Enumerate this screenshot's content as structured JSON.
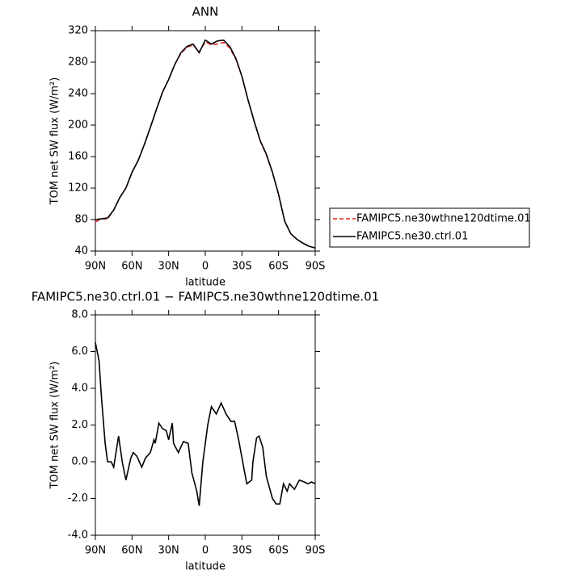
{
  "chart_data": [
    {
      "type": "line",
      "title": "ANN",
      "y_label": "TOM net SW flux (W/m²)",
      "x_label": "latitude",
      "x": [
        90,
        85,
        80,
        75,
        70,
        65,
        60,
        55,
        50,
        45,
        40,
        35,
        30,
        25,
        20,
        15,
        10,
        5,
        0,
        -5,
        -10,
        -15,
        -20,
        -25,
        -30,
        -35,
        -40,
        -45,
        -50,
        -55,
        -60,
        -65,
        -70,
        -75,
        -80,
        -85,
        -90
      ],
      "series": [
        {
          "name": "FAMIPC5.ne30wthne120dtime.01",
          "color": "#e8201c",
          "dash": "dashed",
          "values": [
            77,
            81,
            81,
            92,
            108,
            120,
            140,
            155,
            175,
            197,
            220,
            242,
            258,
            277,
            291,
            299,
            302,
            293,
            306,
            302,
            303,
            305,
            298,
            284,
            262,
            232,
            205,
            180,
            162,
            140,
            112,
            78,
            62,
            55,
            50,
            46,
            44
          ]
        },
        {
          "name": "FAMIPC5.ne30.ctrl.01",
          "color": "#000000",
          "dash": "solid",
          "values": [
            80,
            81,
            82,
            92,
            108,
            120,
            140,
            155,
            175,
            197,
            220,
            242,
            258,
            277,
            292,
            300,
            303,
            292,
            308,
            303,
            307,
            308,
            300,
            285,
            262,
            232,
            205,
            180,
            163,
            140,
            112,
            78,
            62,
            55,
            50,
            46,
            44
          ]
        }
      ],
      "xlim": [
        90,
        -90
      ],
      "xticks": [
        {
          "value": 90,
          "label": "90N"
        },
        {
          "value": 60,
          "label": "60N"
        },
        {
          "value": 30,
          "label": "30N"
        },
        0,
        {
          "value": -30,
          "label": "30S"
        },
        {
          "value": -60,
          "label": "60S"
        },
        {
          "value": -90,
          "label": "90S"
        }
      ],
      "ylim": [
        40,
        320
      ],
      "yticks": [
        40,
        80,
        120,
        160,
        200,
        240,
        280,
        320
      ],
      "legend": "outside-right"
    },
    {
      "type": "line",
      "title": "FAMIPC5.ne30.ctrl.01 − FAMIPC5.ne30wthne120dtime.01",
      "y_label": "TOM net SW flux (W/m²)",
      "x_label": "latitude",
      "x": [
        90,
        87,
        85,
        82,
        80,
        77,
        75,
        71,
        68,
        65,
        61,
        59,
        56,
        52,
        49,
        45,
        42,
        41,
        38,
        35,
        32,
        30,
        27,
        26,
        22,
        18,
        14,
        11,
        7,
        5,
        2,
        -2,
        -5,
        -9,
        -13,
        -17,
        -21,
        -24,
        -27,
        -32,
        -34,
        -38,
        -39,
        -42,
        -44,
        -47,
        -50,
        -55,
        -58,
        -61,
        -64,
        -67,
        -69,
        -73,
        -77,
        -81,
        -84,
        -87,
        -90
      ],
      "series": [
        {
          "color": "#000000",
          "dash": "solid",
          "values": [
            6.5,
            5.5,
            3.5,
            1,
            0,
            0,
            -0.3,
            1.4,
            0,
            -1,
            0.2,
            0.5,
            0.3,
            -0.3,
            0.2,
            0.5,
            1.2,
            1.0,
            2.1,
            1.8,
            1.7,
            1.2,
            2.1,
            1.0,
            0.5,
            1.1,
            1.0,
            -0.6,
            -1.6,
            -2.4,
            0,
            2.0,
            3.0,
            2.6,
            3.2,
            2.6,
            2.2,
            2.2,
            1.3,
            -0.5,
            -1.2,
            -1.0,
            0,
            1.3,
            1.4,
            0.8,
            -0.8,
            -2.0,
            -2.3,
            -2.3,
            -1.2,
            -1.6,
            -1.2,
            -1.5,
            -1.0,
            -1.1,
            -1.2,
            -1.1,
            -1.2
          ]
        }
      ],
      "xlim": [
        90,
        -90
      ],
      "xticks": [
        {
          "value": 90,
          "label": "90N"
        },
        {
          "value": 60,
          "label": "60N"
        },
        {
          "value": 30,
          "label": "30N"
        },
        0,
        {
          "value": -30,
          "label": "30S"
        },
        {
          "value": -60,
          "label": "60S"
        },
        {
          "value": -90,
          "label": "90S"
        }
      ],
      "ylim": [
        -4,
        8
      ],
      "yticks": [
        {
          "value": -4,
          "label": "-4.0"
        },
        {
          "value": -2,
          "label": "-2.0"
        },
        {
          "value": 0,
          "label": "0.0"
        },
        {
          "value": 2,
          "label": "2.0"
        },
        {
          "value": 4,
          "label": "4.0"
        },
        {
          "value": 6,
          "label": "6.0"
        },
        {
          "value": 8,
          "label": "8.0"
        }
      ]
    }
  ]
}
